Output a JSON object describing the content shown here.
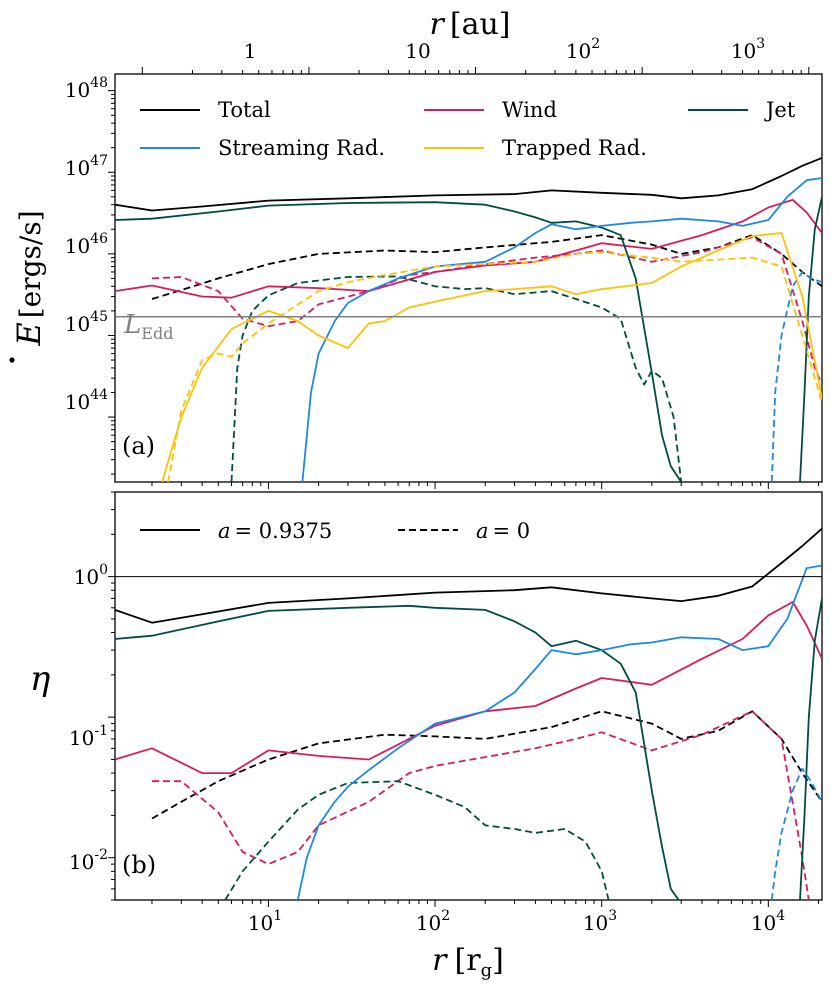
{
  "colors": {
    "total": "#000000",
    "wind": "#d81b60",
    "jet": "#004d40",
    "streaming": "#1e88e5",
    "trapped": "#ffc107",
    "ledd_line": "#808080"
  },
  "chart_data": [
    {
      "type": "line",
      "panel_label": "(a)",
      "xlabel": "r [r_g]",
      "x2label": "r [au]",
      "ylabel": "Ė [ergs/s]",
      "xscale": "log",
      "yscale": "log",
      "xlim": [
        1.2,
        21000
      ],
      "ylim": [
        1.6e+43,
        1.6e+48
      ],
      "x2_ticks": [
        "1",
        "10",
        "10^2",
        "10^3"
      ],
      "x2_tick_positions_rg": [
        17.5,
        175,
        1750,
        17500
      ],
      "yticks": [
        1e+44,
        1e+45,
        1e+46,
        1e+47,
        1e+48
      ],
      "hline": {
        "y": 1.7e+45,
        "label": "L_Edd"
      },
      "legend": [
        "Total",
        "Wind",
        "Jet",
        "Streaming Rad.",
        "Trapped Rad."
      ],
      "series": [
        {
          "name": "Total",
          "style": "solid",
          "color_key": "total",
          "x": [
            1.2,
            2,
            4,
            10,
            30,
            100,
            300,
            500,
            1000,
            2000,
            3000,
            5000,
            8000,
            12000,
            16000,
            21000
          ],
          "y": [
            4e+46,
            3.4e+46,
            3.8e+46,
            4.5e+46,
            4.8e+46,
            5.2e+46,
            5.4e+46,
            6e+46,
            5.6e+46,
            5.3e+46,
            4.8e+46,
            5.2e+46,
            6.2e+46,
            9e+46,
            1.2e+47,
            1.5e+47
          ]
        },
        {
          "name": "Total",
          "style": "dashed",
          "color_key": "total",
          "x": [
            2,
            3,
            5,
            10,
            20,
            50,
            100,
            200,
            500,
            1000,
            2000,
            3000,
            5000,
            8000,
            12000,
            16000,
            21000
          ],
          "y": [
            2.8e+45,
            3.6e+45,
            5e+45,
            7.5e+45,
            1e+46,
            1.1e+46,
            1.05e+46,
            1.2e+46,
            1.4e+46,
            1.7e+46,
            1.3e+46,
            1e+46,
            1.2e+46,
            1.7e+46,
            1e+46,
            6e+45,
            4e+45
          ]
        },
        {
          "name": "Wind",
          "style": "solid",
          "color_key": "wind",
          "x": [
            1.2,
            2,
            4,
            6,
            10,
            20,
            40,
            100,
            200,
            400,
            700,
            1000,
            2000,
            4000,
            7000,
            10000,
            14000,
            17000,
            21000
          ],
          "y": [
            3.5e+45,
            4.1e+45,
            3e+45,
            2.9e+45,
            4e+45,
            3.8e+45,
            3.5e+45,
            6e+45,
            7.2e+45,
            8e+45,
            1.1e+46,
            1.35e+46,
            1.15e+46,
            1.7e+46,
            2.5e+46,
            3.7e+46,
            4.6e+46,
            3.2e+46,
            1.8e+46
          ]
        },
        {
          "name": "Wind",
          "style": "dashed",
          "color_key": "wind",
          "x": [
            2,
            3,
            5,
            7,
            10,
            15,
            20,
            40,
            70,
            100,
            200,
            400,
            700,
            1000,
            2000,
            4000,
            8000,
            12000,
            16000,
            19000,
            21000
          ],
          "y": [
            5e+45,
            5.2e+45,
            3.5e+45,
            1.6e+45,
            1.3e+45,
            1.5e+45,
            2.4e+45,
            3.5e+45,
            5.5e+45,
            6e+45,
            7.5e+45,
            9e+45,
            1e+46,
            1.1e+46,
            8e+45,
            1.05e+46,
            1.6e+46,
            1e+46,
            1.5e+45,
            4e+44,
            2.5e+44
          ]
        },
        {
          "name": "Jet",
          "style": "solid",
          "color_key": "jet",
          "x": [
            1.2,
            2,
            5,
            10,
            30,
            100,
            200,
            300,
            400,
            500,
            700,
            1000,
            1300,
            1600,
            2000,
            2300,
            2600,
            3000
          ],
          "y": [
            2.6e+46,
            2.7e+46,
            3.3e+46,
            3.9e+46,
            4.2e+46,
            4.3e+46,
            4e+46,
            3.3e+46,
            2.8e+46,
            2.4e+46,
            2.5e+46,
            2.1e+46,
            1.7e+46,
            5e+45,
            3.5e+44,
            6e+43,
            2.5e+43,
            1.6e+43
          ]
        },
        {
          "name": "Jet",
          "style": "solid",
          "color_key": "jet",
          "x": [
            15500,
            16500,
            17500,
            19000,
            21000
          ],
          "y": [
            1.6e+43,
            2e+44,
            3e+45,
            2e+46,
            5e+46
          ]
        },
        {
          "name": "Jet",
          "style": "dashed",
          "color_key": "jet",
          "x": [
            6,
            6.5,
            7,
            8,
            10,
            15,
            30,
            60,
            100,
            150,
            200,
            300,
            500,
            700,
            1000,
            1300,
            1600,
            1800,
            2000,
            2300,
            2700,
            3000
          ],
          "y": [
            1.6e+43,
            4e+44,
            1e+45,
            2e+45,
            3.1e+45,
            4.4e+45,
            5.2e+45,
            5.3e+45,
            4e+45,
            3.7e+45,
            3.8e+45,
            3.2e+45,
            3.5e+45,
            2.8e+45,
            2.2e+45,
            1.6e+45,
            4e+44,
            2.5e+44,
            3.7e+44,
            3e+44,
            1e+44,
            1.6e+43
          ]
        },
        {
          "name": "Streaming Rad.",
          "style": "solid",
          "color_key": "streaming",
          "x": [
            16,
            18,
            20,
            25,
            30,
            40,
            60,
            100,
            200,
            300,
            400,
            500,
            700,
            1000,
            1500,
            2000,
            3000,
            5000,
            7000,
            10000,
            13000,
            17000,
            21000
          ],
          "y": [
            1.6e+43,
            2e+44,
            6e+44,
            1.5e+45,
            2.5e+45,
            3.5e+45,
            5e+45,
            7e+45,
            8e+45,
            1.2e+46,
            1.8e+46,
            2.3e+46,
            2e+46,
            2.2e+46,
            2.4e+46,
            2.5e+46,
            2.7e+46,
            2.5e+46,
            2.2e+46,
            2.6e+46,
            5e+46,
            8e+46,
            8.5e+46
          ]
        },
        {
          "name": "Streaming Rad.",
          "style": "dashed",
          "color_key": "streaming",
          "x": [
            10500,
            11000,
            12000,
            14000,
            16000,
            18000,
            21000
          ],
          "y": [
            1.6e+43,
            2e+44,
            1e+45,
            4e+45,
            6e+45,
            5e+45,
            4.5e+45
          ]
        },
        {
          "name": "Trapped Rad.",
          "style": "solid",
          "color_key": "trapped",
          "x": [
            2.3,
            3,
            4,
            6,
            10,
            15,
            20,
            30,
            40,
            50,
            70,
            100,
            200,
            300,
            500,
            700,
            1000,
            2000,
            3000,
            5000,
            8000,
            12000,
            16000,
            21000
          ],
          "y": [
            1.6e+43,
            1e+44,
            4e+44,
            1.2e+45,
            2e+45,
            1.5e+45,
            1e+45,
            7e+44,
            1.4e+45,
            1.5e+45,
            2.2e+45,
            2.6e+45,
            3.5e+45,
            3.7e+45,
            4e+45,
            3.2e+45,
            3.7e+45,
            4.4e+45,
            7e+45,
            1.1e+46,
            1.65e+46,
            1.8e+46,
            3e+45,
            1.7e+44
          ]
        },
        {
          "name": "Trapped Rad.",
          "style": "dashed",
          "color_key": "trapped",
          "x": [
            2.5,
            3,
            4,
            5,
            6,
            7,
            10,
            20,
            30,
            50,
            100,
            200,
            400,
            700,
            1000,
            1500,
            2000,
            3000,
            5000,
            8000,
            12000,
            16000,
            21000
          ],
          "y": [
            1.6e+43,
            1.2e+44,
            5e+44,
            6e+44,
            5.5e+44,
            8e+44,
            1.4e+45,
            3.5e+45,
            4.5e+45,
            5.5e+45,
            7e+45,
            7.5e+45,
            8e+45,
            1e+46,
            1.05e+46,
            9.5e+45,
            9e+45,
            8e+45,
            8.5e+45,
            9e+45,
            7e+45,
            1e+45,
            1.5e+44
          ]
        }
      ]
    },
    {
      "type": "line",
      "panel_label": "(b)",
      "xlabel": "r [r_g]",
      "ylabel": "η",
      "xscale": "log",
      "yscale": "log",
      "xlim": [
        1.2,
        21000
      ],
      "ylim": [
        0.005,
        4
      ],
      "yticks": [
        0.01,
        0.1,
        1
      ],
      "hline": {
        "y": 1
      },
      "legend": [
        "a = 0.9375",
        "a = 0"
      ],
      "series": [
        {
          "name": "Total",
          "style": "solid",
          "color_key": "total",
          "x": [
            1.2,
            2,
            4,
            10,
            30,
            100,
            300,
            500,
            1000,
            2000,
            3000,
            5000,
            8000,
            12000,
            16000,
            21000
          ],
          "y": [
            0.58,
            0.47,
            0.54,
            0.65,
            0.7,
            0.77,
            0.8,
            0.84,
            0.76,
            0.7,
            0.67,
            0.73,
            0.85,
            1.25,
            1.65,
            2.2
          ]
        },
        {
          "name": "Total",
          "style": "dashed",
          "color_key": "total",
          "x": [
            2,
            3,
            5,
            10,
            20,
            50,
            100,
            200,
            500,
            1000,
            2000,
            3000,
            5000,
            8000,
            12000,
            16000,
            21000
          ],
          "y": [
            0.019,
            0.025,
            0.035,
            0.05,
            0.065,
            0.075,
            0.073,
            0.07,
            0.085,
            0.11,
            0.09,
            0.07,
            0.08,
            0.11,
            0.07,
            0.04,
            0.025
          ]
        },
        {
          "name": "Wind",
          "style": "solid",
          "color_key": "wind",
          "x": [
            1.2,
            2,
            4,
            6,
            10,
            20,
            40,
            100,
            200,
            400,
            700,
            1000,
            2000,
            4000,
            7000,
            10000,
            14000,
            17000,
            21000
          ],
          "y": [
            0.05,
            0.06,
            0.04,
            0.04,
            0.058,
            0.053,
            0.05,
            0.087,
            0.11,
            0.12,
            0.16,
            0.19,
            0.17,
            0.26,
            0.36,
            0.53,
            0.66,
            0.45,
            0.26
          ]
        },
        {
          "name": "Wind",
          "style": "dashed",
          "color_key": "wind",
          "x": [
            2,
            3,
            5,
            7,
            10,
            15,
            20,
            40,
            70,
            100,
            200,
            400,
            700,
            1000,
            2000,
            4000,
            8000,
            12000,
            16000,
            17500
          ],
          "y": [
            0.035,
            0.035,
            0.021,
            0.011,
            0.009,
            0.011,
            0.017,
            0.025,
            0.04,
            0.045,
            0.052,
            0.06,
            0.07,
            0.078,
            0.058,
            0.075,
            0.11,
            0.07,
            0.01,
            0.005
          ]
        },
        {
          "name": "Jet",
          "style": "solid",
          "color_key": "jet",
          "x": [
            1.2,
            2,
            5,
            10,
            30,
            70,
            100,
            200,
            300,
            400,
            500,
            700,
            1000,
            1300,
            1600,
            2000,
            2300,
            2600,
            2900
          ],
          "y": [
            0.36,
            0.38,
            0.48,
            0.57,
            0.6,
            0.62,
            0.6,
            0.58,
            0.48,
            0.4,
            0.32,
            0.35,
            0.3,
            0.24,
            0.15,
            0.03,
            0.012,
            0.006,
            0.005
          ]
        },
        {
          "name": "Jet",
          "style": "solid",
          "color_key": "jet",
          "x": [
            15500,
            16500,
            17500,
            19000,
            21000
          ],
          "y": [
            0.005,
            0.02,
            0.1,
            0.35,
            0.7
          ]
        },
        {
          "name": "Jet",
          "style": "dashed",
          "color_key": "jet",
          "x": [
            5.5,
            7,
            10,
            15,
            20,
            30,
            60,
            100,
            150,
            200,
            300,
            400,
            600,
            800,
            1000,
            1100
          ],
          "y": [
            0.005,
            0.008,
            0.013,
            0.022,
            0.028,
            0.034,
            0.035,
            0.028,
            0.023,
            0.017,
            0.016,
            0.015,
            0.016,
            0.013,
            0.008,
            0.005
          ]
        },
        {
          "name": "Streaming Rad.",
          "style": "solid",
          "color_key": "streaming",
          "x": [
            15,
            17,
            20,
            25,
            30,
            40,
            60,
            100,
            200,
            300,
            400,
            500,
            700,
            1000,
            1500,
            2000,
            3000,
            5000,
            7000,
            10000,
            13000,
            17000,
            21000
          ],
          "y": [
            0.005,
            0.01,
            0.017,
            0.025,
            0.032,
            0.042,
            0.06,
            0.09,
            0.11,
            0.15,
            0.22,
            0.3,
            0.28,
            0.3,
            0.33,
            0.34,
            0.37,
            0.36,
            0.3,
            0.32,
            0.5,
            1.15,
            1.2
          ]
        },
        {
          "name": "Streaming Rad.",
          "style": "dashed",
          "color_key": "streaming",
          "x": [
            10500,
            11000,
            12000,
            14000,
            16000,
            18000,
            21000
          ],
          "y": [
            0.005,
            0.008,
            0.015,
            0.03,
            0.043,
            0.035,
            0.025
          ]
        }
      ]
    }
  ],
  "panel_a": {
    "label": "(a)",
    "ylabel_main": "E",
    "ylabel_units": "[ergs/s]",
    "top_xlabel_var": "r",
    "top_xlabel_units": "[au]",
    "ledd_label": "L",
    "ledd_sub": "Edd",
    "yticks": [
      {
        "base": "10",
        "exp": "48"
      },
      {
        "base": "10",
        "exp": "47"
      },
      {
        "base": "10",
        "exp": "46"
      },
      {
        "base": "10",
        "exp": "45"
      },
      {
        "base": "10",
        "exp": "44"
      }
    ],
    "top_ticks": [
      {
        "base": "1",
        "exp": ""
      },
      {
        "base": "10",
        "exp": ""
      },
      {
        "base": "10",
        "exp": "2"
      },
      {
        "base": "10",
        "exp": "3"
      }
    ],
    "legend": {
      "total": "Total",
      "wind": "Wind",
      "jet": "Jet",
      "streaming": "Streaming Rad.",
      "trapped": "Trapped Rad."
    }
  },
  "panel_b": {
    "label": "(b)",
    "ylabel": "η",
    "yticks": [
      {
        "base": "10",
        "exp": "0"
      },
      {
        "base": "10",
        "exp": "-1"
      },
      {
        "base": "10",
        "exp": "-2"
      }
    ],
    "legend": {
      "spin_solid_var": "a",
      "spin_solid_value": "= 0.9375",
      "spin_dashed_var": "a",
      "spin_dashed_value": "= 0"
    },
    "bottom_ticks": [
      {
        "base": "10",
        "exp": "1"
      },
      {
        "base": "10",
        "exp": "2"
      },
      {
        "base": "10",
        "exp": "3"
      },
      {
        "base": "10",
        "exp": "4"
      }
    ],
    "xlabel_var": "r",
    "xlabel_units_open": "[r",
    "xlabel_units_sub": "g",
    "xlabel_units_close": "]"
  }
}
